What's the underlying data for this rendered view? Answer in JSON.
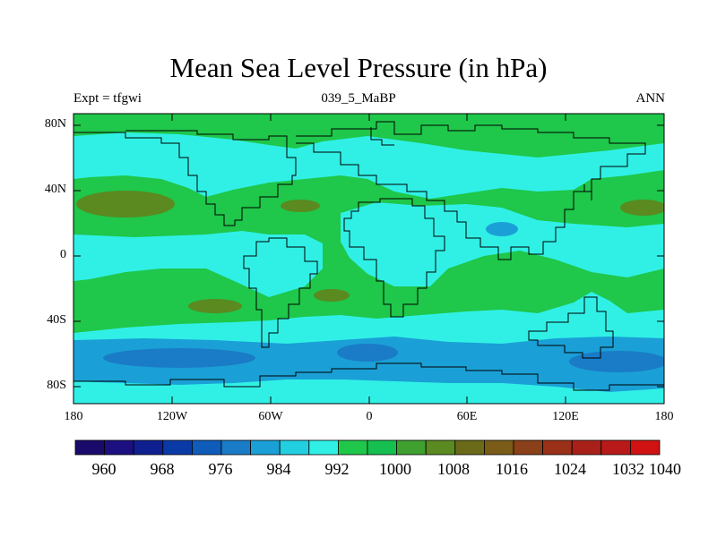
{
  "title": "Mean Sea Level Pressure (in hPa)",
  "subtitle_left": "Expt = tfgwi",
  "subtitle_center": "039_5_MaBP",
  "subtitle_right": "ANN",
  "y_ticks": [
    "80N",
    "40N",
    "0",
    "40S",
    "80S"
  ],
  "x_ticks": [
    "180",
    "120W",
    "60W",
    "0",
    "60E",
    "120E",
    "180"
  ],
  "colorbar": {
    "labels": [
      "960",
      "968",
      "976",
      "984",
      "992",
      "1000",
      "1008",
      "1016",
      "1024",
      "1032",
      "1040"
    ],
    "colors": [
      "#1a0a6b",
      "#1c0f80",
      "#0f1f8f",
      "#0a3aa6",
      "#0f5cba",
      "#1a7bc6",
      "#1aa0d6",
      "#22cfe0",
      "#30f0e6",
      "#1fc74a",
      "#16c050",
      "#3fa030",
      "#5a8a20",
      "#6a6a18",
      "#7a5c18",
      "#8a4018",
      "#9a3018",
      "#a82018",
      "#b81a1a",
      "#d01212"
    ]
  },
  "palette": {
    "land_green": "#1fc74a",
    "band_green": "#16c050",
    "cyan": "#30f0e6",
    "deep_cyan": "#1aa0d6",
    "blue": "#1a7bc6",
    "olive": "#5a8a20"
  }
}
